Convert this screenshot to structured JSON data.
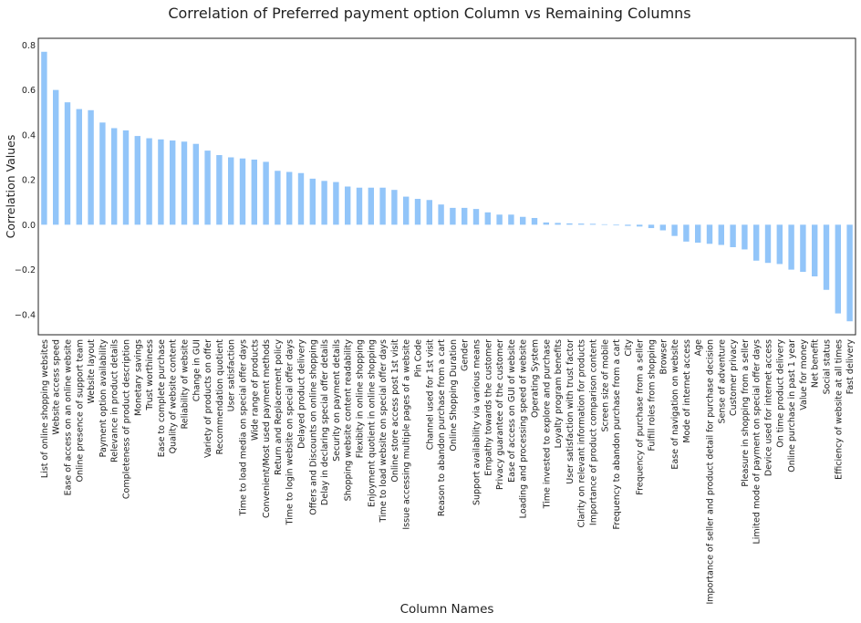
{
  "chart_data": {
    "type": "bar",
    "title": "Correlation of Preferred payment option Column vs Remaining Columns",
    "xlabel": "Column Names",
    "ylabel": "Correlation Values",
    "ylim": [
      -0.49,
      0.83
    ],
    "yticks": [
      -0.4,
      -0.2,
      0.0,
      0.2,
      0.4,
      0.6,
      0.8
    ],
    "ytick_labels": [
      "−0.4",
      "−0.2",
      "0.0",
      "0.2",
      "0.4",
      "0.6",
      "0.8"
    ],
    "grid": false,
    "legend": false,
    "bar_color": "#92c5f9",
    "categories": [
      "List of online shopping websites",
      "Website access speed",
      "Ease of access on an online website",
      "Online presence of support team",
      "Website layout",
      "Payment option availability",
      "Relevance in product details",
      "Completeness of product description",
      "Monetary savings",
      "Trust worthiness",
      "Ease to complete purchase",
      "Quality of website content",
      "Reliability of website",
      "Change in GUI",
      "Variety of products on offer",
      "Recommendation quotient",
      "User satisfaction",
      "Time to load media on special offer days",
      "Wide range of products",
      "Convenient/Most used payment methods",
      "Return and Replacement policy",
      "Time to login website on special offer days",
      "Delayed product delivery",
      "Offers and Discounts on online shopping",
      "Delay in declaring special offer details",
      "Security on payment details",
      "Shopping website content readability",
      "Flexibity in online shopping",
      "Enjoyment quotient in online shopping",
      "Time to load website on special offer days",
      "Online store access post 1st visit",
      "Issue accessing multiple pages of a website",
      "Pin Code",
      "Channel used for 1st visit",
      "Reason to abandon purchase from a cart",
      "Online Shopping Duration",
      "Gender",
      "Support availability via various means",
      "Empathy towards the customer",
      "Privacy guarantee of the customer",
      "Ease of access on GUI of website",
      "Loading and processing speed of website",
      "Operating System",
      "Time invested to explore and purchase",
      "Loyalty program benefits",
      "User satisfaction with trust factor",
      "Clarity on relevant information for products",
      "Importance of product comparison content",
      "Screen size of mobile",
      "Frequency to abandon purchase from a cart",
      "City",
      "Frequency of purchase from a seller",
      "Fulfill roles from shopping",
      "Browser",
      "Ease of navigation on website",
      "Mode of internet access",
      "Age",
      "Importance of seller and product detail for purchase decision",
      "Sense of adventure",
      "Customer privacy",
      "Pleasure in shopping from a seller",
      "Limited mode of payment on special offer days",
      "Device used for internet access",
      "On time product delivery",
      "Online purchase in past 1 year",
      "Value for money",
      "Net benefit",
      "Social status",
      "Efficiency of website at all times",
      "Fast delivery"
    ],
    "values": [
      0.77,
      0.6,
      0.545,
      0.515,
      0.51,
      0.455,
      0.43,
      0.42,
      0.395,
      0.385,
      0.38,
      0.375,
      0.37,
      0.36,
      0.33,
      0.31,
      0.3,
      0.295,
      0.29,
      0.28,
      0.24,
      0.235,
      0.23,
      0.205,
      0.195,
      0.19,
      0.17,
      0.165,
      0.165,
      0.165,
      0.155,
      0.125,
      0.115,
      0.11,
      0.09,
      0.075,
      0.075,
      0.07,
      0.055,
      0.045,
      0.045,
      0.035,
      0.03,
      0.01,
      0.008,
      0.006,
      0.005,
      0.004,
      0.002,
      -0.003,
      -0.005,
      -0.008,
      -0.015,
      -0.025,
      -0.05,
      -0.075,
      -0.08,
      -0.085,
      -0.09,
      -0.1,
      -0.11,
      -0.16,
      -0.17,
      -0.175,
      -0.2,
      -0.21,
      -0.23,
      -0.29,
      -0.395,
      -0.43
    ]
  }
}
